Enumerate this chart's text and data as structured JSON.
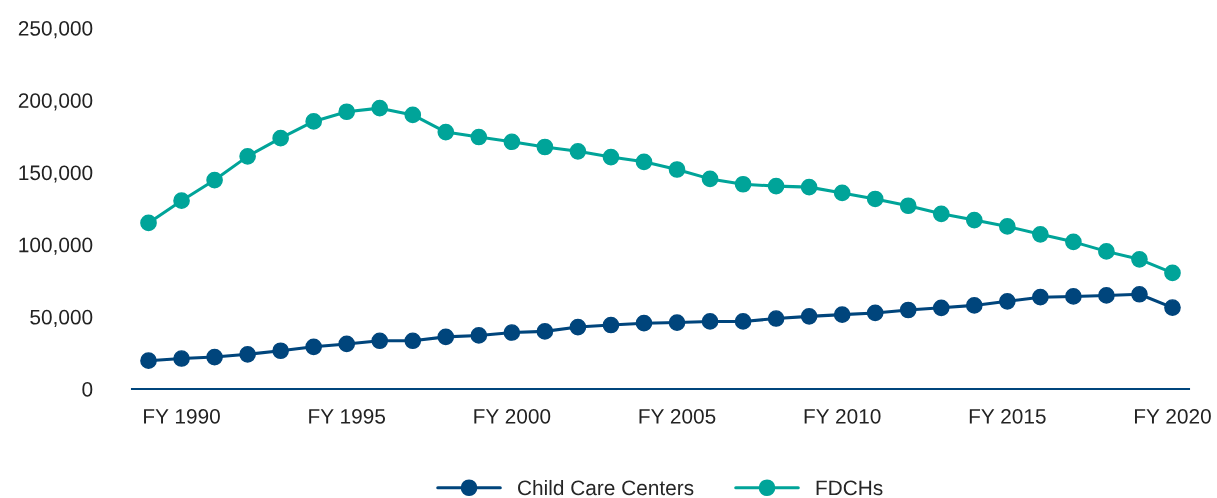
{
  "chart_data": {
    "type": "line",
    "categories": [
      null,
      "FY 1990",
      null,
      null,
      null,
      null,
      "FY 1995",
      null,
      null,
      null,
      null,
      "FY 2000",
      null,
      null,
      null,
      null,
      "FY 2005",
      null,
      null,
      null,
      null,
      "FY 2010",
      null,
      null,
      null,
      null,
      "FY 2015",
      null,
      null,
      null,
      null,
      "FY 2020"
    ],
    "series": [
      {
        "name": "Child Care Centers",
        "color": "#00457c",
        "values": [
          19600,
          21100,
          22100,
          24000,
          26500,
          29200,
          31200,
          33400,
          33400,
          36100,
          37100,
          39100,
          39900,
          42900,
          44300,
          45600,
          46000,
          46800,
          46800,
          48800,
          50300,
          51500,
          52700,
          54700,
          56200,
          57900,
          60700,
          63600,
          64100,
          64800,
          65600,
          56400
        ]
      },
      {
        "name": "FDCHs",
        "color": "#00a499",
        "values": [
          115000,
          130400,
          144700,
          161100,
          173700,
          185300,
          192000,
          194500,
          189800,
          177900,
          174500,
          171200,
          167600,
          164600,
          160600,
          157300,
          152000,
          145500,
          141800,
          140500,
          139800,
          135800,
          131600,
          126900,
          121300,
          117000,
          112600,
          107100,
          101900,
          95300,
          89800,
          80400
        ]
      }
    ],
    "ylim": [
      0,
      250000
    ],
    "yticks": [
      {
        "value": 0,
        "label": "0"
      },
      {
        "value": 50000,
        "label": "50,000"
      },
      {
        "value": 100000,
        "label": "100,000"
      },
      {
        "value": 150000,
        "label": "150,000"
      },
      {
        "value": 200000,
        "label": "200,000"
      },
      {
        "value": 250000,
        "label": "250,000"
      }
    ],
    "grid": false,
    "legend": "bottom",
    "marker": "circle",
    "line_style": "solid"
  }
}
